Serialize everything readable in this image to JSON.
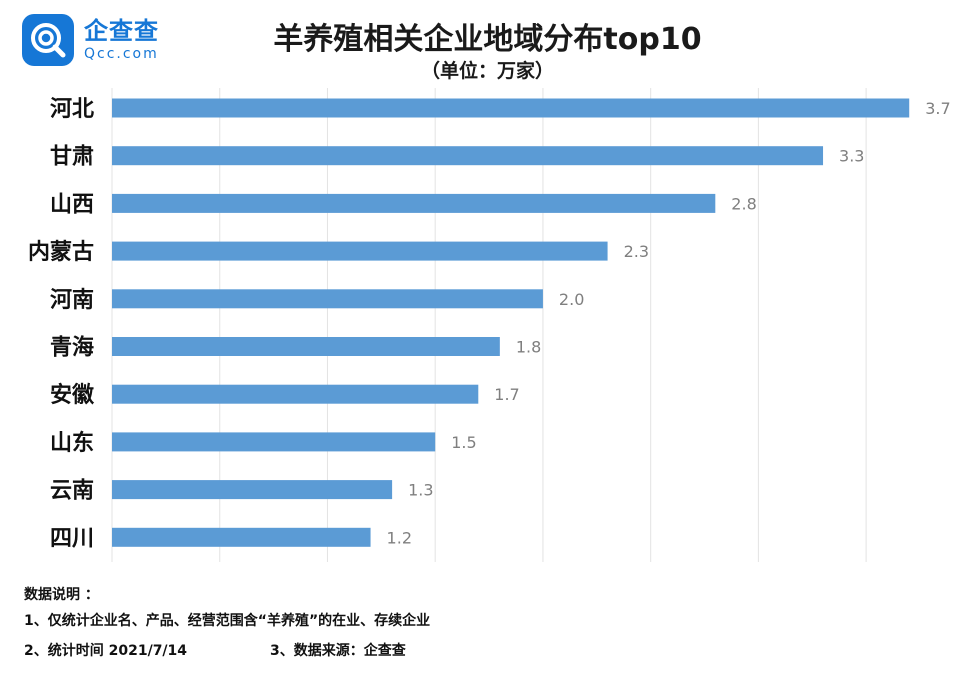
{
  "brand": {
    "name": "企查查",
    "domain": "Qcc.com",
    "icon": "qcc-logo-icon",
    "color": "#1677d6"
  },
  "chart_data": {
    "type": "bar",
    "orientation": "horizontal",
    "title": "羊养殖相关企业地域分布top10",
    "subtitle": "（单位：万家）",
    "categories": [
      "河北",
      "甘肃",
      "山西",
      "内蒙古",
      "河南",
      "青海",
      "安徽",
      "山东",
      "云南",
      "四川"
    ],
    "values": [
      3.7,
      3.3,
      2.8,
      2.3,
      2.0,
      1.8,
      1.7,
      1.5,
      1.3,
      1.2
    ],
    "value_labels": [
      "3.7",
      "3.3",
      "2.8",
      "2.3",
      "2.0",
      "1.8",
      "1.7",
      "1.5",
      "1.3",
      "1.2"
    ],
    "xlim": [
      0,
      3.75
    ],
    "grid": true,
    "bar_color": "#5b9bd5",
    "label_color": "#7f7f7f"
  },
  "notes": {
    "heading": "数据说明 ：",
    "line1": "1、仅统计企业名、产品、经营范围含“羊养殖”的在业、存续企业",
    "line2": "2、统计时间  2021/7/14",
    "line3": "3、数据来源：企查查"
  }
}
